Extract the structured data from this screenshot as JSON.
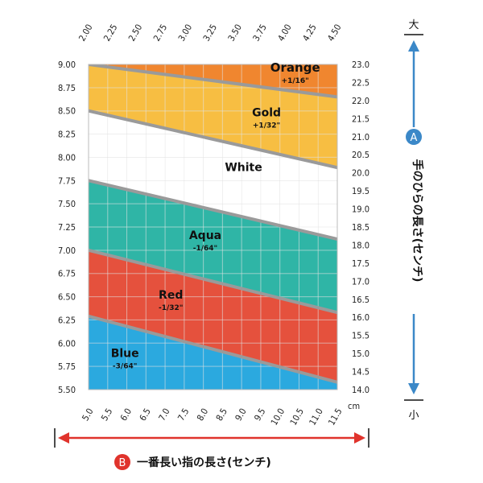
{
  "chart_data": {
    "type": "area",
    "x_axis": {
      "label": "一番長い指の長さ(センチ)",
      "unit": "cm",
      "range": [
        5.0,
        11.5
      ],
      "ticks": [
        "5.0",
        "5.5",
        "6.0",
        "6.5",
        "7.0",
        "7.5",
        "8.0",
        "8.5",
        "9.0",
        "9.5",
        "10.0",
        "10.5",
        "11.0",
        "11.5"
      ]
    },
    "y_left_axis": {
      "range": [
        5.5,
        9.0
      ],
      "ticks": [
        "5.50",
        "5.75",
        "6.00",
        "6.25",
        "6.50",
        "6.75",
        "7.00",
        "7.25",
        "7.50",
        "7.75",
        "8.00",
        "8.25",
        "8.50",
        "8.75",
        "9.00"
      ]
    },
    "y_right_axis": {
      "label": "手のひらの長さ(センチ)",
      "range": [
        14.0,
        23.0
      ],
      "ticks": [
        "14.0",
        "14.5",
        "15.0",
        "15.5",
        "16.0",
        "16.5",
        "17.0",
        "17.5",
        "18.0",
        "18.5",
        "19.0",
        "19.5",
        "20.0",
        "20.5",
        "21.0",
        "21.5",
        "22.0",
        "22.5",
        "23.0"
      ]
    },
    "top_axis": {
      "range": [
        2.0,
        4.5
      ],
      "ticks": [
        "2.00",
        "2.25",
        "2.50",
        "2.75",
        "3.00",
        "3.25",
        "3.50",
        "3.75",
        "4.00",
        "4.25",
        "4.50"
      ]
    },
    "boundaries": [
      {
        "x": [
          5.0,
          11.5
        ],
        "y": [
          9.0,
          8.65
        ]
      },
      {
        "x": [
          5.0,
          11.5
        ],
        "y": [
          8.5,
          7.89
        ]
      },
      {
        "x": [
          5.0,
          11.5
        ],
        "y": [
          7.75,
          7.12
        ]
      },
      {
        "x": [
          5.0,
          11.5
        ],
        "y": [
          7.0,
          6.33
        ]
      },
      {
        "x": [
          5.0,
          11.5
        ],
        "y": [
          6.29,
          5.58
        ]
      }
    ],
    "bands": [
      {
        "name": "Orange",
        "adjust": "+1/16\"",
        "color": "#f0862f"
      },
      {
        "name": "Gold",
        "adjust": "+1/32\"",
        "color": "#f7be42"
      },
      {
        "name": "White",
        "adjust": "",
        "color": "#ffffff"
      },
      {
        "name": "Aqua",
        "adjust": "-1/64\"",
        "color": "#2fb5a6"
      },
      {
        "name": "Red",
        "adjust": "-1/32\"",
        "color": "#e5513d"
      },
      {
        "name": "Blue",
        "adjust": "-3/64\"",
        "color": "#2ba9df"
      }
    ],
    "boundary_color": "#9a9a9a",
    "grid": true
  },
  "indicators": {
    "a_letter": "A",
    "b_letter": "B",
    "big": "大",
    "small": "小",
    "accent": "#3b88c8",
    "arrow_red": "#e0332c"
  }
}
